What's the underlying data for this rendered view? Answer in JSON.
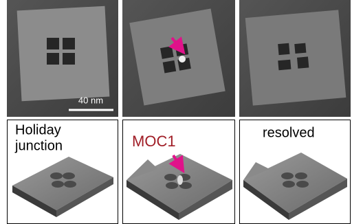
{
  "top_row": {
    "scale_bar": "40 nm"
  },
  "bottom_row": {
    "labels": [
      {
        "lines": [
          "Holiday",
          "junction"
        ]
      },
      {
        "lines": [
          "MOC1"
        ]
      },
      {
        "lines": [
          "resolved"
        ]
      }
    ]
  }
}
